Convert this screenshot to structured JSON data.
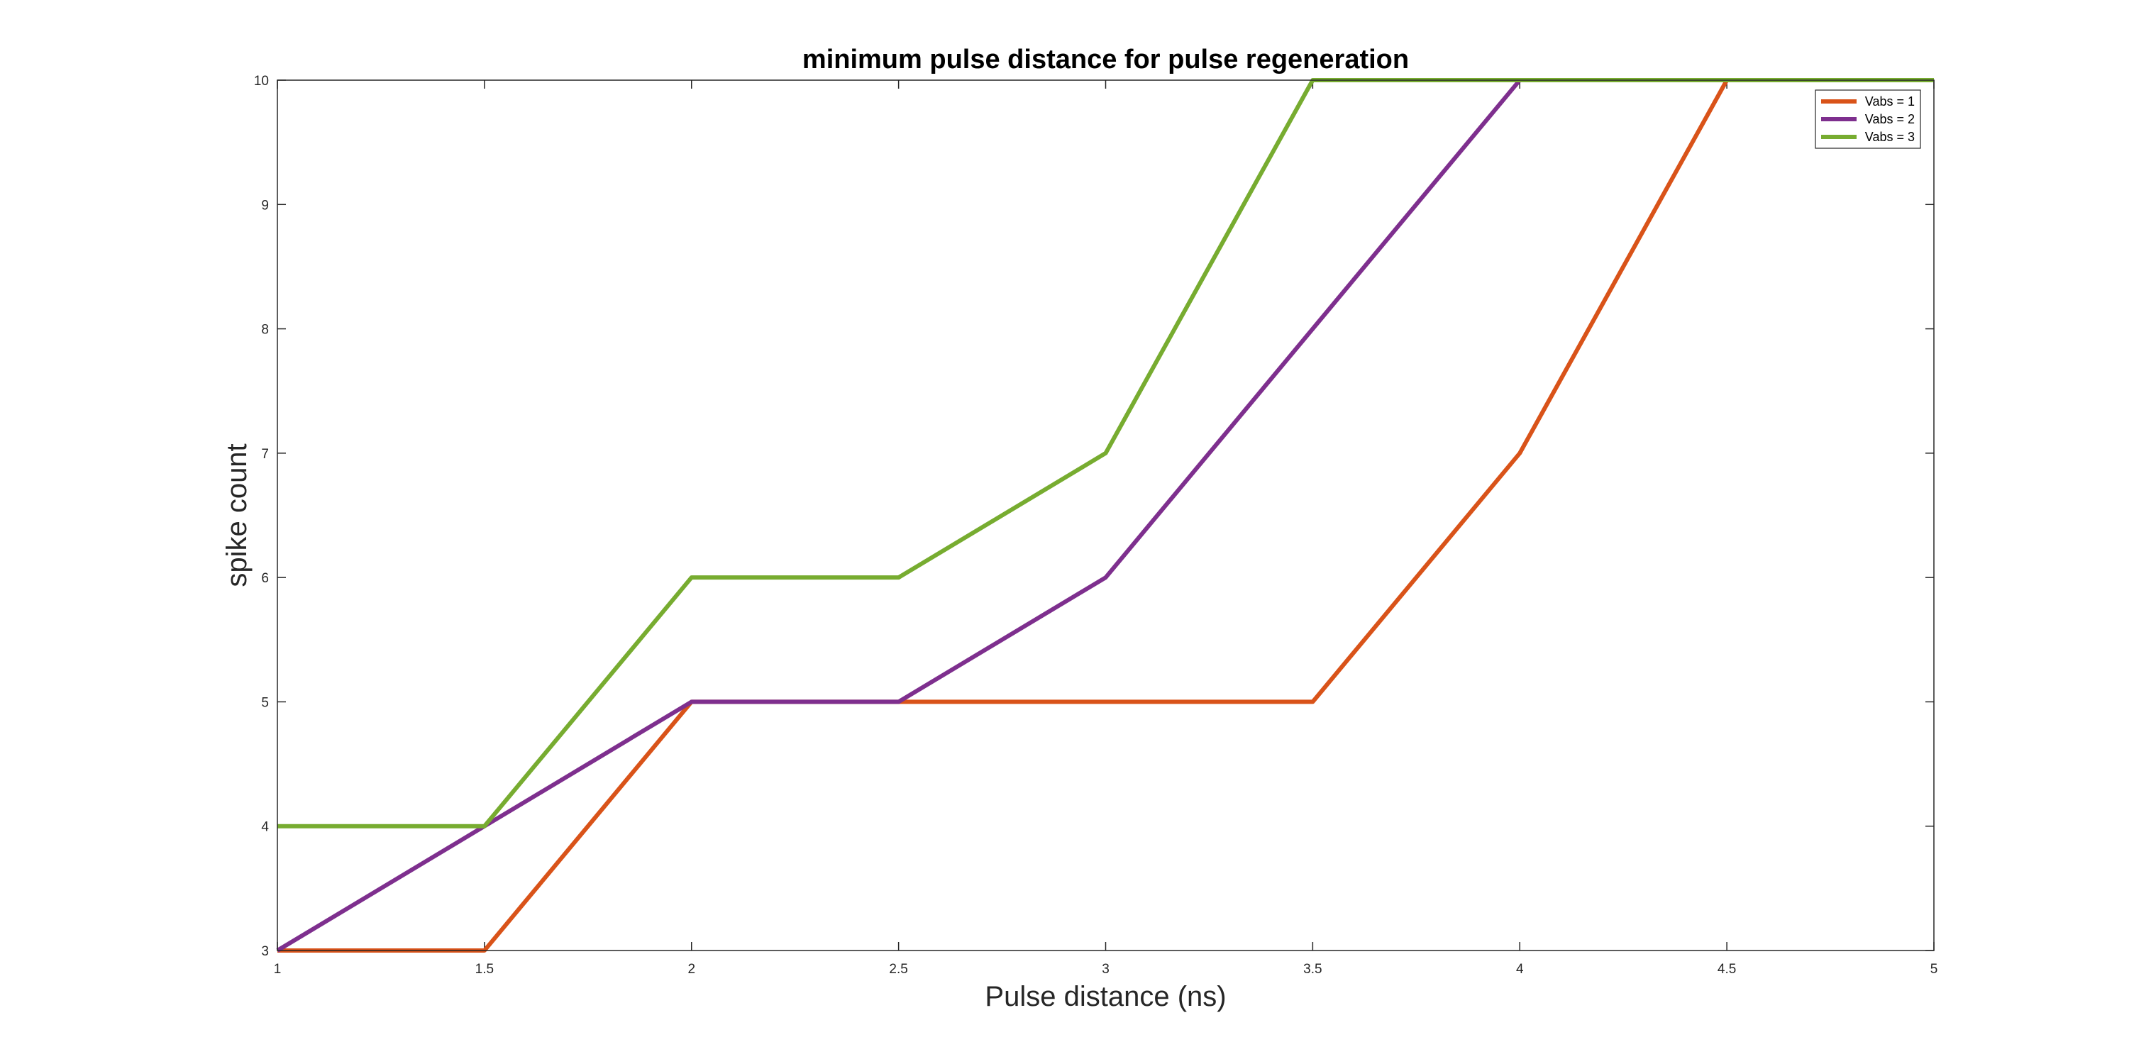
{
  "chart_data": {
    "type": "line",
    "title": "minimum pulse distance for pulse regeneration",
    "xlabel": "Pulse distance (ns)",
    "ylabel": "spike count",
    "xlim": [
      1,
      5
    ],
    "ylim": [
      3,
      10
    ],
    "xticks": [
      1,
      1.5,
      2,
      2.5,
      3,
      3.5,
      4,
      4.5,
      5
    ],
    "yticks": [
      3,
      4,
      5,
      6,
      7,
      8,
      9,
      10
    ],
    "grid": false,
    "legend_position": "top-right",
    "x": [
      1,
      1.5,
      2,
      2.5,
      3,
      3.5,
      4,
      4.5,
      5
    ],
    "series": [
      {
        "name": "Vabs = 1",
        "color": "#D95319",
        "values": [
          3,
          3,
          5,
          5,
          5,
          5,
          7,
          10,
          10
        ]
      },
      {
        "name": "Vabs = 2",
        "color": "#7E2F8E",
        "values": [
          3,
          4,
          5,
          5,
          6,
          8,
          10,
          10,
          10
        ]
      },
      {
        "name": "Vabs = 3",
        "color": "#77AC30",
        "values": [
          4,
          4,
          6,
          6,
          7,
          10,
          10,
          10,
          10
        ]
      }
    ]
  }
}
